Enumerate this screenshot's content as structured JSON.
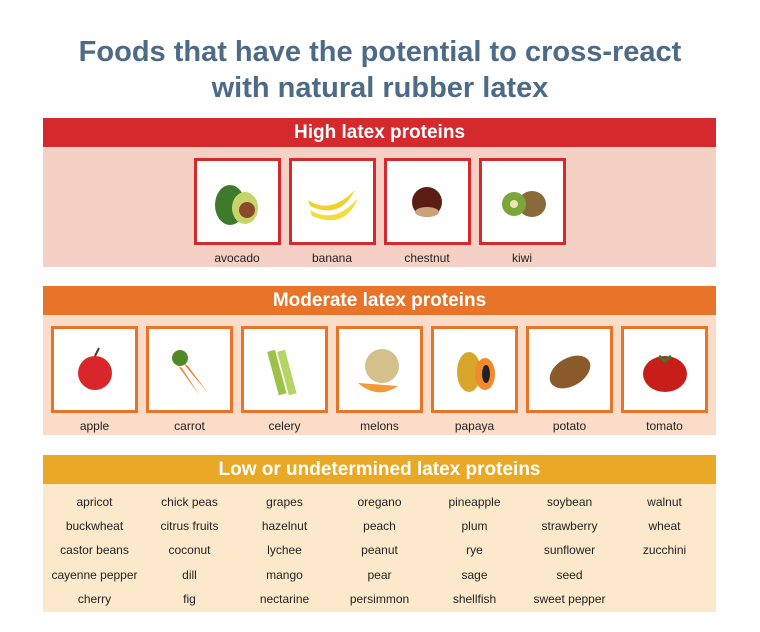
{
  "title_line1": "Foods that have the potential to cross-react",
  "title_line2": "with natural rubber latex",
  "high": {
    "heading": "High latex proteins",
    "color": "#d42a2e",
    "bg": "#f5d0c4",
    "items": [
      "avocado",
      "banana",
      "chestnut",
      "kiwi"
    ]
  },
  "moderate": {
    "heading": "Moderate latex proteins",
    "color": "#e8742a",
    "bg": "#fbdcc8",
    "items": [
      "apple",
      "carrot",
      "celery",
      "melons",
      "papaya",
      "potato",
      "tomato"
    ]
  },
  "low": {
    "heading": "Low or undetermined latex proteins",
    "color": "#e9a825",
    "bg": "#fce9cc",
    "columns": [
      [
        "apricot",
        "buckwheat",
        "castor beans",
        "cayenne pepper",
        "cherry"
      ],
      [
        "chick peas",
        "citrus fruits",
        "coconut",
        "dill",
        "fig"
      ],
      [
        "grapes",
        "hazelnut",
        "lychee",
        "mango",
        "nectarine"
      ],
      [
        "oregano",
        "peach",
        "peanut",
        "pear",
        "persimmon"
      ],
      [
        "pineapple",
        "plum",
        "rye",
        "sage",
        "shellfish"
      ],
      [
        "soybean",
        "strawberry",
        "sunflower",
        "seed",
        "sweet pepper"
      ],
      [
        "walnut",
        "wheat",
        "zucchini"
      ]
    ]
  }
}
